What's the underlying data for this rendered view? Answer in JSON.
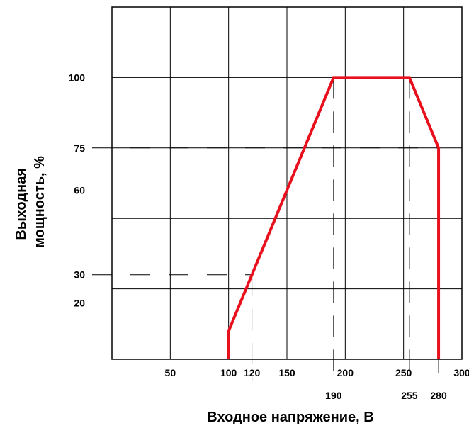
{
  "chart_data": {
    "type": "line",
    "title": "",
    "xlabel": "Входное напряжение, В",
    "ylabel_lines": [
      "Выходная",
      "мощность, %"
    ],
    "xlim": [
      0,
      300
    ],
    "ylim": [
      0,
      125
    ],
    "x_ticks": [
      50,
      100,
      120,
      150,
      200,
      250,
      300
    ],
    "x_ticks_secondary": [
      190,
      255,
      280
    ],
    "y_ticks": [
      20,
      30,
      60,
      75,
      100
    ],
    "x_grid": [
      50,
      100,
      150,
      200,
      250
    ],
    "y_grid": [
      25,
      50,
      75,
      100
    ],
    "grid": true,
    "series": [
      {
        "color": "#e8101c",
        "x": [
          100,
          100,
          190,
          255,
          280,
          280
        ],
        "y": [
          0,
          10,
          100,
          100,
          75,
          0
        ]
      }
    ],
    "guide_lines": {
      "horizontal": [
        {
          "y": 75,
          "x_to": 280
        },
        {
          "y": 30,
          "x_to": 120
        }
      ],
      "vertical": [
        {
          "x": 120,
          "y_to": 30
        },
        {
          "x": 190,
          "y_to": 100
        },
        {
          "x": 255,
          "y_to": 100
        },
        {
          "x": 280,
          "y_to": 75
        }
      ]
    }
  }
}
